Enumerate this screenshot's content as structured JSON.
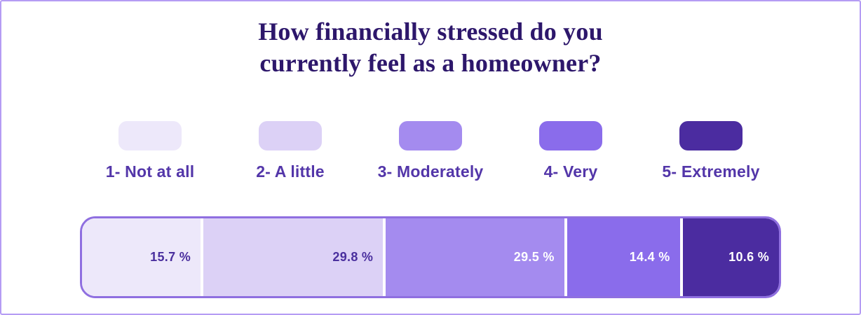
{
  "header": {
    "title_lines": [
      "How financially stressed do you",
      "currently feel as a homeowner?"
    ]
  },
  "chart_data": {
    "type": "bar",
    "subtype": "horizontal-stacked-percentage",
    "title": "How financially stressed do you currently feel as a homeowner?",
    "categories": [
      "1- Not at all",
      "2- A little",
      "3- Moderately",
      "4- Very",
      "5- Extremely"
    ],
    "values": [
      15.7,
      29.8,
      29.5,
      14.4,
      10.6
    ],
    "value_labels": [
      "15.7 %",
      "29.8 %",
      "29.5 %",
      "14.4 %",
      "10.6 %"
    ],
    "unit": "%",
    "total": 100,
    "segment_colors": [
      "#ede8fa",
      "#dcd1f6",
      "#a48bef",
      "#8a6ceb",
      "#4b2ca0"
    ],
    "segment_label_colors": [
      "#4a2f9e",
      "#4a2f9e",
      "#ffffff",
      "#ffffff",
      "#ffffff"
    ],
    "legend_position": "top",
    "grid": false,
    "axes": false
  },
  "style": {
    "title_color": "#2d176b",
    "legend_label_color": "#5336a9",
    "bar_border_color": "#8f6fe0",
    "page_border_color": "#b59cf4"
  }
}
